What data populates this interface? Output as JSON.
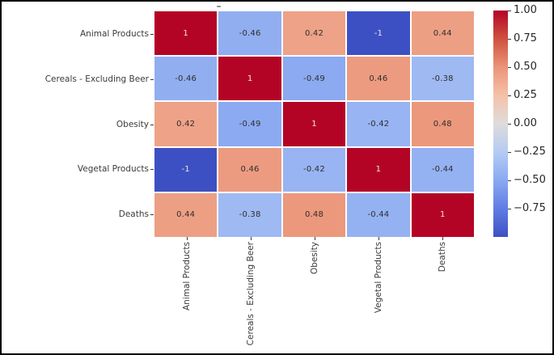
{
  "figure": {
    "background_color": "#ffffff",
    "border_color": "#000000",
    "grid_line_color": "#ffffff",
    "axis_tick_color": "#3a3a3a",
    "annotation_text_dark": "#2e2e2e",
    "annotation_text_light": "#f0e4e6"
  },
  "chart_data": {
    "type": "heatmap",
    "title": "",
    "xlabel": "",
    "ylabel": "",
    "categories": [
      "Animal Products",
      "Cereals - Excluding Beer",
      "Obesity",
      "Vegetal Products",
      "Deaths"
    ],
    "matrix": [
      [
        1,
        -0.46,
        0.42,
        -1,
        0.44
      ],
      [
        -0.46,
        1,
        -0.49,
        0.46,
        -0.38
      ],
      [
        0.42,
        -0.49,
        1,
        -0.42,
        0.48
      ],
      [
        -1,
        0.46,
        -0.42,
        1,
        -0.44
      ],
      [
        0.44,
        -0.38,
        0.48,
        -0.44,
        1
      ]
    ],
    "cell_labels": [
      [
        "1",
        "-0.46",
        "0.42",
        "-1",
        "0.44"
      ],
      [
        "-0.46",
        "1",
        "-0.49",
        "0.46",
        "-0.38"
      ],
      [
        "0.42",
        "-0.49",
        "1",
        "-0.42",
        "0.48"
      ],
      [
        "-1",
        "0.46",
        "-0.42",
        "1",
        "-0.44"
      ],
      [
        "0.44",
        "-0.38",
        "0.48",
        "-0.44",
        "1"
      ]
    ],
    "vmin": -1,
    "vmax": 1,
    "colormap": {
      "name": "coolwarm",
      "stops": [
        [
          -1.0,
          "#3d50c3"
        ],
        [
          -0.75,
          "#5f7de4"
        ],
        [
          -0.5,
          "#8aa9f1"
        ],
        [
          -0.25,
          "#b5cbf4"
        ],
        [
          0.0,
          "#dedcda"
        ],
        [
          0.25,
          "#f5c1a9"
        ],
        [
          0.5,
          "#eb9478"
        ],
        [
          0.75,
          "#ce5240"
        ],
        [
          1.0,
          "#b40426"
        ]
      ]
    },
    "colorbar": {
      "position": "right",
      "tick_values": [
        1.0,
        0.75,
        0.5,
        0.25,
        0.0,
        -0.25,
        -0.5,
        -0.75
      ],
      "tick_labels": [
        "1.00",
        "0.75",
        "0.50",
        "0.25",
        "0.00",
        "−0.25",
        "−0.50",
        "−0.75"
      ]
    },
    "legend": "none",
    "grid": "off"
  }
}
